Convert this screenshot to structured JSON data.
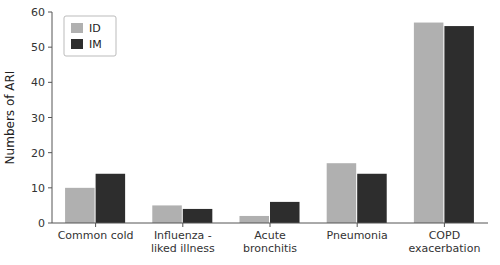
{
  "chart_data": {
    "type": "bar",
    "categories": [
      "Common cold",
      "Influenza -\nliked illness",
      "Acute\nbronchitis",
      "Pneumonia",
      "COPD\nexacerbation"
    ],
    "series": [
      {
        "name": "ID",
        "color": "#b0b0b0",
        "values": [
          10,
          5,
          2,
          17,
          57
        ]
      },
      {
        "name": "IM",
        "color": "#2d2d2d",
        "values": [
          14,
          4,
          6,
          14,
          56
        ]
      }
    ],
    "ylabel": "Numbers of ARI",
    "ylim": [
      0,
      60
    ],
    "yticks": [
      0,
      10,
      20,
      30,
      40,
      50,
      60
    ],
    "grid": false,
    "legend": "upper left"
  }
}
